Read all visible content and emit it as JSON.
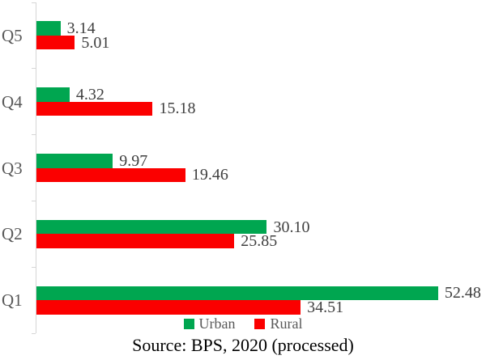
{
  "chart_data": {
    "type": "bar",
    "orientation": "horizontal",
    "title": "",
    "xlabel": "",
    "ylabel": "",
    "categories_top_to_bottom": true,
    "categories": [
      "Q5",
      "Q4",
      "Q3",
      "Q2",
      "Q1"
    ],
    "series": [
      {
        "name": "Urban",
        "color": "#00a650",
        "values": [
          3.14,
          4.32,
          9.97,
          30.1,
          52.48
        ],
        "labels": [
          "3.14",
          "4.32",
          "9.97",
          "30.10",
          "52.48"
        ]
      },
      {
        "name": "Rural",
        "color": "#fb0000",
        "values": [
          5.01,
          15.18,
          19.46,
          25.85,
          34.51
        ],
        "labels": [
          "5.01",
          "15.18",
          "19.46",
          "25.85",
          "34.51"
        ]
      }
    ],
    "xlim": [
      0,
      60
    ],
    "grid": false,
    "x_axis_visible": false,
    "legend_position": "bottom",
    "source_note": "Source: BPS, 2020 (processed)"
  },
  "colors": {
    "axis": "#d6d6d6",
    "category_label": "#595959",
    "value_label": "#3f3f3f",
    "legend_label": "#595959",
    "source_text": "#000000",
    "background": "#ffffff"
  }
}
